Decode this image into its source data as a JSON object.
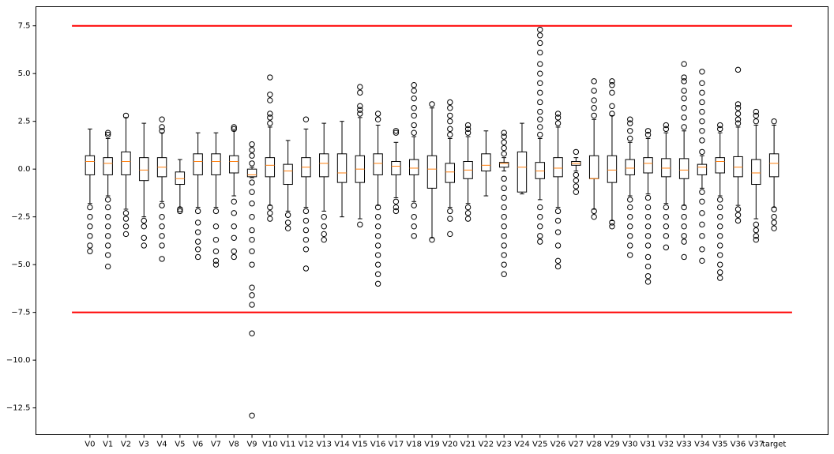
{
  "chart_data": {
    "type": "boxplot",
    "categories": [
      "V0",
      "V1",
      "V2",
      "V3",
      "V4",
      "V5",
      "V6",
      "V7",
      "V8",
      "V9",
      "V10",
      "V11",
      "V12",
      "V13",
      "V14",
      "V15",
      "V16",
      "V17",
      "V18",
      "V19",
      "V20",
      "V21",
      "V22",
      "V23",
      "V24",
      "V25",
      "V26",
      "V27",
      "V28",
      "V29",
      "V30",
      "V31",
      "V32",
      "V33",
      "V34",
      "V35",
      "V36",
      "V37",
      "target"
    ],
    "box_color": "#000000",
    "median_color": "#ff7f0e",
    "boxes": [
      {
        "whislo": -1.8,
        "q1": -0.3,
        "med": 0.4,
        "q3": 0.7,
        "whishi": 2.1,
        "fliers": [
          -2,
          -2.5,
          -3,
          -3.5,
          -4,
          -4.3
        ]
      },
      {
        "whislo": -1.4,
        "q1": -0.3,
        "med": 0.3,
        "q3": 0.6,
        "whishi": 1.6,
        "fliers": [
          1.8,
          1.9,
          -1.6,
          -2,
          -2.5,
          -3,
          -3.5,
          -4,
          -4.5,
          -5.1
        ]
      },
      {
        "whislo": -2.1,
        "q1": -0.3,
        "med": 0.4,
        "q3": 0.9,
        "whishi": 2.7,
        "fliers": [
          2.8,
          -2.3,
          -2.6,
          -3,
          -3.4
        ]
      },
      {
        "whislo": -2.5,
        "q1": -0.6,
        "med": -0.05,
        "q3": 0.6,
        "whishi": 2.4,
        "fliers": [
          -2.7,
          -3,
          -3.6,
          -4
        ]
      },
      {
        "whislo": -1.7,
        "q1": -0.4,
        "med": 0.1,
        "q3": 0.6,
        "whishi": 1.9,
        "fliers": [
          2,
          2.2,
          2.6,
          -1.9,
          -2.5,
          -3,
          -3.5,
          -4,
          -4.7
        ]
      },
      {
        "whislo": -2,
        "q1": -0.8,
        "med": -0.5,
        "q3": -0.15,
        "whishi": 0.5,
        "fliers": [
          -2.1,
          -2.2
        ]
      },
      {
        "whislo": -2,
        "q1": -0.3,
        "med": 0.4,
        "q3": 0.8,
        "whishi": 1.9,
        "fliers": [
          -2.2,
          -2.8,
          -3.3,
          -3.8,
          -4.2,
          -4.6
        ]
      },
      {
        "whislo": -2,
        "q1": -0.3,
        "med": 0.4,
        "q3": 0.8,
        "whishi": 1.9,
        "fliers": [
          -2.2,
          -3,
          -3.7,
          -4.3,
          -4.8,
          -5
        ]
      },
      {
        "whislo": -1.4,
        "q1": -0.2,
        "med": 0.4,
        "q3": 0.7,
        "whishi": 2,
        "fliers": [
          2.1,
          2.2,
          -1.7,
          -2.3,
          -3,
          -3.6,
          -4.3,
          -4.6
        ]
      },
      {
        "whislo": -0.45,
        "q1": -0.4,
        "med": -0.3,
        "q3": 0,
        "whishi": 0.1,
        "fliers": [
          0.3,
          0.7,
          1,
          1.3,
          -0.7,
          -1.2,
          -1.8,
          -2.5,
          -3.2,
          -3.7,
          -4.3,
          -5,
          -6.2,
          -6.6,
          -7.1,
          -8.6,
          -12.9
        ]
      },
      {
        "whislo": -1.9,
        "q1": -0.4,
        "med": 0.2,
        "q3": 0.6,
        "whishi": 2.2,
        "fliers": [
          2.4,
          2.7,
          2.9,
          3.6,
          3.9,
          4.8,
          -2,
          -2.3,
          -2.6
        ]
      },
      {
        "whislo": -2.2,
        "q1": -0.8,
        "med": -0.1,
        "q3": 0.25,
        "whishi": 1.5,
        "fliers": [
          -2.4,
          -2.8,
          -3.1
        ]
      },
      {
        "whislo": -2,
        "q1": -0.4,
        "med": 0.1,
        "q3": 0.6,
        "whishi": 2.1,
        "fliers": [
          2.6,
          -2.2,
          -2.7,
          -3.2,
          -3.7,
          -4.2,
          -5.2
        ]
      },
      {
        "whislo": -2.2,
        "q1": -0.4,
        "med": 0.3,
        "q3": 0.8,
        "whishi": 2.4,
        "fliers": [
          -2.5,
          -3,
          -3.4,
          -3.7
        ]
      },
      {
        "whislo": -2.5,
        "q1": -0.7,
        "med": -0.2,
        "q3": 0.8,
        "whishi": 2.5,
        "fliers": []
      },
      {
        "whislo": -2.6,
        "q1": -0.7,
        "med": 0,
        "q3": 0.7,
        "whishi": 2.7,
        "fliers": [
          2.9,
          3.1,
          3.3,
          4,
          4.3,
          -2.9
        ]
      },
      {
        "whislo": -1.9,
        "q1": -0.3,
        "med": 0.3,
        "q3": 0.8,
        "whishi": 2.3,
        "fliers": [
          2.6,
          2.9,
          -2,
          -2.5,
          -3,
          -3.5,
          -4,
          -4.5,
          -5,
          -5.5,
          -6
        ]
      },
      {
        "whislo": -1.5,
        "q1": -0.3,
        "med": 0.15,
        "q3": 0.4,
        "whishi": 1.4,
        "fliers": [
          1.9,
          2,
          -1.7,
          -2,
          -2.2
        ]
      },
      {
        "whislo": -1.7,
        "q1": -0.3,
        "med": 0.05,
        "q3": 0.5,
        "whishi": 1.7,
        "fliers": [
          1.9,
          2.3,
          2.8,
          3.2,
          3.7,
          4.1,
          4.4,
          -1.9,
          -2.5,
          -3,
          -3.5
        ]
      },
      {
        "whislo": -3.6,
        "q1": -1,
        "med": 0,
        "q3": 0.7,
        "whishi": 3.2,
        "fliers": [
          3.4,
          -3.7
        ]
      },
      {
        "whislo": -2,
        "q1": -0.7,
        "med": -0.15,
        "q3": 0.3,
        "whishi": 1.6,
        "fliers": [
          1.8,
          2.1,
          2.5,
          2.8,
          3.2,
          3.5,
          -2.2,
          -2.6,
          -3.4
        ]
      },
      {
        "whislo": -1.8,
        "q1": -0.5,
        "med": -0.05,
        "q3": 0.4,
        "whishi": 1.7,
        "fliers": [
          1.9,
          2.1,
          2.3,
          -2,
          -2.3,
          -2.6
        ]
      },
      {
        "whislo": -1.4,
        "q1": -0.1,
        "med": 0.2,
        "q3": 0.8,
        "whishi": 2,
        "fliers": []
      },
      {
        "whislo": -0.1,
        "q1": 0.1,
        "med": 0.3,
        "q3": 0.35,
        "whishi": 0.6,
        "fliers": [
          0.8,
          1.1,
          1.4,
          1.7,
          1.9,
          -0.5,
          -1,
          -1.5,
          -2,
          -2.5,
          -3,
          -3.5,
          -4,
          -4.5,
          -5,
          -5.5
        ]
      },
      {
        "whislo": -1.3,
        "q1": -1.2,
        "med": 0.1,
        "q3": 0.9,
        "whishi": 2.4,
        "fliers": []
      },
      {
        "whislo": -1.6,
        "q1": -0.5,
        "med": -0.1,
        "q3": 0.35,
        "whishi": 1.6,
        "fliers": [
          1.8,
          2.2,
          2.6,
          3,
          3.5,
          4,
          4.5,
          5,
          5.5,
          6.1,
          6.6,
          7,
          7.3,
          -2,
          -2.5,
          -3,
          -3.5,
          -3.8
        ]
      },
      {
        "whislo": -2,
        "q1": -0.4,
        "med": 0.05,
        "q3": 0.6,
        "whishi": 2.2,
        "fliers": [
          2.4,
          2.7,
          2.9,
          -2.2,
          -2.7,
          -3.3,
          -4,
          -4.8,
          -5.1
        ]
      },
      {
        "whislo": -0.1,
        "q1": 0.2,
        "med": 0.3,
        "q3": 0.4,
        "whishi": 0.6,
        "fliers": [
          0.9,
          -0.3,
          -0.6,
          -0.9,
          -1.2
        ]
      },
      {
        "whislo": -2.1,
        "q1": -0.5,
        "med": -0.5,
        "q3": 0.7,
        "whishi": 2.6,
        "fliers": [
          2.8,
          3.2,
          3.6,
          4.1,
          4.6,
          -2.2,
          -2.5
        ]
      },
      {
        "whislo": -2.7,
        "q1": -0.7,
        "med": -0.05,
        "q3": 0.7,
        "whishi": 2.8,
        "fliers": [
          2.9,
          3.3,
          4,
          4.4,
          4.6,
          -2.8,
          -3
        ]
      },
      {
        "whislo": -1.4,
        "q1": -0.3,
        "med": 0.05,
        "q3": 0.5,
        "whishi": 1.4,
        "fliers": [
          1.6,
          2,
          2.4,
          2.6,
          -1.6,
          -2,
          -2.5,
          -3,
          -3.5,
          -4,
          -4.5
        ]
      },
      {
        "whislo": -1.3,
        "q1": -0.2,
        "med": 0.3,
        "q3": 0.6,
        "whishi": 1.6,
        "fliers": [
          1.8,
          2,
          -1.5,
          -2,
          -2.5,
          -3,
          -3.5,
          -4,
          -4.6,
          -5.1,
          -5.6,
          -5.9
        ]
      },
      {
        "whislo": -1.8,
        "q1": -0.4,
        "med": 0.05,
        "q3": 0.55,
        "whishi": 1.9,
        "fliers": [
          2.1,
          2.3,
          -2,
          -2.5,
          -3,
          -3.5,
          -4.1
        ]
      },
      {
        "whislo": -1.9,
        "q1": -0.5,
        "med": -0.05,
        "q3": 0.55,
        "whishi": 2,
        "fliers": [
          2.2,
          2.7,
          3.2,
          3.7,
          4.1,
          4.6,
          4.8,
          5.5,
          -2,
          -2.5,
          -3,
          -3.5,
          -3.8,
          -4.6
        ]
      },
      {
        "whislo": -1,
        "q1": -0.3,
        "med": 0.1,
        "q3": 0.25,
        "whishi": 0.7,
        "fliers": [
          0.9,
          1.5,
          2,
          2.5,
          3,
          3.5,
          4,
          4.5,
          5.1,
          -1.2,
          -1.7,
          -2.3,
          -2.9,
          -3.5,
          -4.2,
          -4.8
        ]
      },
      {
        "whislo": -1.4,
        "q1": -0.2,
        "med": 0.4,
        "q3": 0.6,
        "whishi": 1.9,
        "fliers": [
          2.1,
          2.3,
          -1.6,
          -2,
          -2.5,
          -3,
          -3.5,
          -4,
          -4.5,
          -5,
          -5.4,
          -5.7
        ]
      },
      {
        "whislo": -1.9,
        "q1": -0.4,
        "med": 0.1,
        "q3": 0.65,
        "whishi": 2.2,
        "fliers": [
          2.4,
          2.6,
          2.9,
          3.2,
          3.4,
          5.2,
          -2.1,
          -2.4,
          -2.7
        ]
      },
      {
        "whislo": -2.6,
        "q1": -0.8,
        "med": -0.2,
        "q3": 0.5,
        "whishi": 2.3,
        "fliers": [
          2.5,
          2.8,
          3,
          -2.9,
          -3.2,
          -3.5,
          -3.7
        ]
      },
      {
        "whislo": -2,
        "q1": -0.4,
        "med": 0.3,
        "q3": 0.8,
        "whishi": 2.3,
        "fliers": [
          2.5,
          -2.1,
          -2.5,
          -2.8,
          -3.1
        ]
      }
    ],
    "hlines": [
      {
        "y": 7.5,
        "color": "#ff0000"
      },
      {
        "y": -7.5,
        "color": "#ff0000"
      }
    ],
    "ylim": [
      -13.9,
      8.5
    ],
    "yticks": [
      {
        "value": 7.5,
        "label": "7.5"
      },
      {
        "value": 5,
        "label": "5.0"
      },
      {
        "value": 2.5,
        "label": "2.5"
      },
      {
        "value": 0,
        "label": "0.0"
      },
      {
        "value": -2.5,
        "label": "−2.5"
      },
      {
        "value": -5,
        "label": "−5.0"
      },
      {
        "value": -7.5,
        "label": "−7.5"
      },
      {
        "value": -10,
        "label": "−10.0"
      },
      {
        "value": -12.5,
        "label": "−12.5"
      }
    ]
  }
}
